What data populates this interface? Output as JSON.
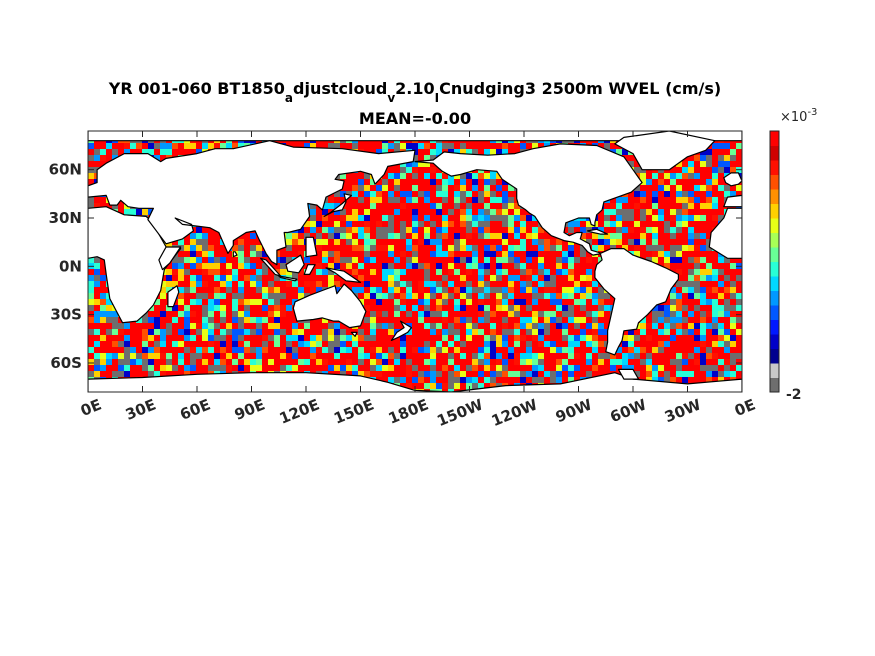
{
  "chart_data": {
    "type": "heatmap",
    "title_parts": [
      {
        "text": "YR 001-060 BT1850",
        "sub": false
      },
      {
        "text": "a",
        "sub": true
      },
      {
        "text": "djustcloud",
        "sub": false
      },
      {
        "text": "v",
        "sub": true
      },
      {
        "text": "2.10",
        "sub": false
      },
      {
        "text": "I",
        "sub": true
      },
      {
        "text": "Cnudging3 2500m WVEL (cm/s)",
        "sub": false
      }
    ],
    "subtitle": "MEAN=-0.00",
    "x_ticks": [
      "0E",
      "30E",
      "60E",
      "90E",
      "120E",
      "150E",
      "180E",
      "150W",
      "120W",
      "90W",
      "60W",
      "30W",
      "0E"
    ],
    "y_ticks": [
      "60N",
      "30N",
      "0N",
      "30S",
      "60S"
    ],
    "y_tick_values": [
      60,
      30,
      0,
      -30,
      -60
    ],
    "xlim": [
      0,
      360
    ],
    "ylim": [
      -78,
      84
    ],
    "colorbar": {
      "exponent_label": "×10",
      "exponent_power": "-3",
      "tick_labels": [
        "-2"
      ],
      "colors": [
        "#6e6e6e",
        "#c8c8c8",
        "#00008f",
        "#0000c8",
        "#0018ff",
        "#0058ff",
        "#0098ff",
        "#00d8ff",
        "#28ffd6",
        "#68ff96",
        "#a8ff56",
        "#e8ff16",
        "#ffd000",
        "#ff9000",
        "#ff5000",
        "#ff1000",
        "#d00000",
        "#ff0000"
      ]
    },
    "field_palette": {
      "high": "#ff0000",
      "low": "#6e6e6e",
      "mid": [
        "#ff1000",
        "#ff5000",
        "#ffd000",
        "#e8ff16",
        "#68ff96",
        "#28ffd6",
        "#00d8ff",
        "#0098ff",
        "#0058ff",
        "#0000c8"
      ],
      "land": "#ffffff",
      "coast": "#000000"
    }
  }
}
